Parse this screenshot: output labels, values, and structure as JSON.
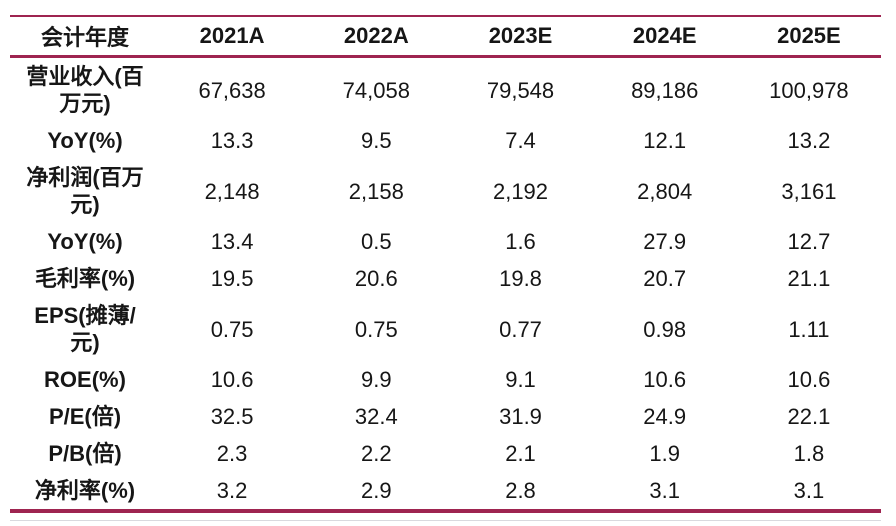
{
  "chart_data": {
    "type": "table",
    "columns": [
      "会计年度",
      "2021A",
      "2022A",
      "2023E",
      "2024E",
      "2025E"
    ],
    "rows": [
      {
        "metric": "营业收入(百万元)",
        "values": [
          "67,638",
          "74,058",
          "79,548",
          "89,186",
          "100,978"
        ]
      },
      {
        "metric": "YoY(%)",
        "values": [
          "13.3",
          "9.5",
          "7.4",
          "12.1",
          "13.2"
        ]
      },
      {
        "metric": "净利润(百万元)",
        "values": [
          "2,148",
          "2,158",
          "2,192",
          "2,804",
          "3,161"
        ]
      },
      {
        "metric": "YoY(%)",
        "values": [
          "13.4",
          "0.5",
          "1.6",
          "27.9",
          "12.7"
        ]
      },
      {
        "metric": "毛利率(%)",
        "values": [
          "19.5",
          "20.6",
          "19.8",
          "20.7",
          "21.1"
        ]
      },
      {
        "metric": "EPS(摊薄/元)",
        "values": [
          "0.75",
          "0.75",
          "0.77",
          "0.98",
          "1.11"
        ]
      },
      {
        "metric": "ROE(%)",
        "values": [
          "10.6",
          "9.9",
          "9.1",
          "10.6",
          "10.6"
        ]
      },
      {
        "metric": "P/E(倍)",
        "values": [
          "32.5",
          "32.4",
          "31.9",
          "24.9",
          "22.1"
        ]
      },
      {
        "metric": "P/B(倍)",
        "values": [
          "2.3",
          "2.2",
          "2.1",
          "1.9",
          "1.8"
        ]
      },
      {
        "metric": "净利率(%)",
        "values": [
          "3.2",
          "2.9",
          "2.8",
          "3.1",
          "3.1"
        ]
      }
    ],
    "layout": {
      "grid": "off",
      "header_position": "top",
      "label_column": "left"
    }
  },
  "colors": {
    "accent": "#9E2450",
    "text": "#161616",
    "faint_rule": "#D9D9DE"
  }
}
